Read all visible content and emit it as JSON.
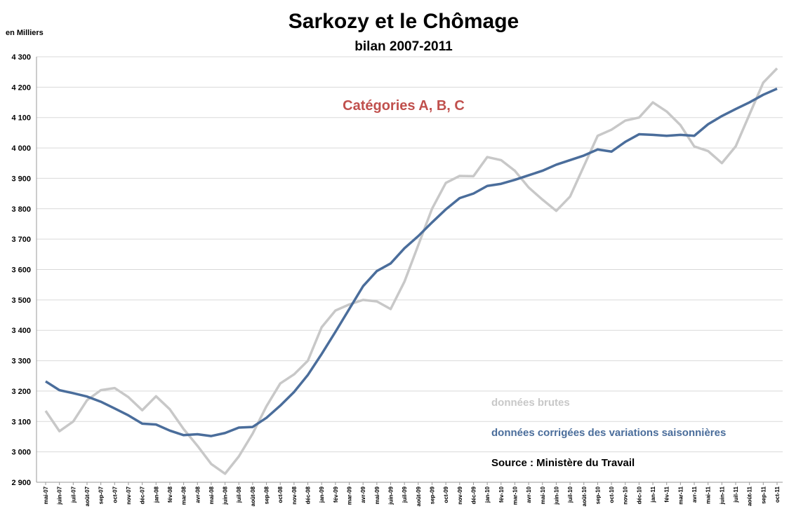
{
  "chart_data": {
    "type": "line",
    "title": "Sarkozy et le Chômage",
    "subtitle": "bilan 2007-2011",
    "y_axis_label": "en Milliers",
    "annotation": "Catégories A, B, C",
    "source": "Source : Ministère du Travail",
    "categories": [
      "mai-07",
      "juin-07",
      "juil-07",
      "août-07",
      "sep-07",
      "oct-07",
      "nov-07",
      "déc-07",
      "jan-08",
      "fév-08",
      "mar-08",
      "avr-08",
      "mai-08",
      "juin-08",
      "juil-08",
      "août-08",
      "sep-08",
      "oct-08",
      "nov-08",
      "déc-08",
      "jan-09",
      "fév-09",
      "mar-09",
      "avr-09",
      "mai-09",
      "juin-09",
      "juil-09",
      "août-09",
      "sep-09",
      "oct-09",
      "nov-09",
      "déc-09",
      "jan-10",
      "fév-10",
      "mar-10",
      "avr-10",
      "mai-10",
      "juin-10",
      "juil-10",
      "août-10",
      "sep-10",
      "oct-10",
      "nov-10",
      "déc-10",
      "jan-11",
      "fév-11",
      "mar-11",
      "avr-11",
      "mai-11",
      "juin-11",
      "juil-11",
      "août-11",
      "sep-11",
      "oct-11"
    ],
    "series": [
      {
        "name": "données brutes",
        "color": "#c8c8c8",
        "values": [
          3135,
          3068,
          3100,
          3170,
          3203,
          3210,
          3180,
          3137,
          3183,
          3140,
          3075,
          3020,
          2960,
          2928,
          2985,
          3060,
          3150,
          3225,
          3255,
          3300,
          3410,
          3465,
          3485,
          3500,
          3495,
          3470,
          3560,
          3680,
          3800,
          3885,
          3908,
          3907,
          3970,
          3960,
          3925,
          3870,
          3830,
          3793,
          3840,
          3940,
          4040,
          4060,
          4090,
          4100,
          4150,
          4120,
          4075,
          4005,
          3990,
          3950,
          4005,
          4110,
          4215,
          4262
        ]
      },
      {
        "name": "données corrigées des variations saisonnières",
        "color": "#4a6d9b",
        "values": [
          3232,
          3203,
          3193,
          3182,
          3165,
          3143,
          3120,
          3093,
          3090,
          3070,
          3055,
          3058,
          3052,
          3062,
          3080,
          3082,
          3112,
          3152,
          3197,
          3253,
          3322,
          3395,
          3470,
          3545,
          3595,
          3620,
          3670,
          3710,
          3755,
          3798,
          3835,
          3850,
          3875,
          3882,
          3895,
          3910,
          3925,
          3945,
          3960,
          3975,
          3995,
          3988,
          4020,
          4045,
          4043,
          4040,
          4043,
          4040,
          4078,
          4105,
          4128,
          4150,
          4175,
          4195
        ]
      }
    ],
    "ylim": [
      2900,
      4300
    ],
    "yticks": [
      {
        "value": 2900,
        "label": "2 900"
      },
      {
        "value": 3000,
        "label": "3 000"
      },
      {
        "value": 3100,
        "label": "3 100"
      },
      {
        "value": 3200,
        "label": "3 200"
      },
      {
        "value": 3300,
        "label": "3 300"
      },
      {
        "value": 3400,
        "label": "3 400"
      },
      {
        "value": 3500,
        "label": "3 500"
      },
      {
        "value": 3600,
        "label": "3 600"
      },
      {
        "value": 3700,
        "label": "3 700"
      },
      {
        "value": 3800,
        "label": "3 800"
      },
      {
        "value": 3900,
        "label": "3 900"
      },
      {
        "value": 4000,
        "label": "4 000"
      },
      {
        "value": 4100,
        "label": "4 100"
      },
      {
        "value": 4200,
        "label": "4 200"
      },
      {
        "value": 4300,
        "label": "4 300"
      }
    ],
    "grid": true,
    "annotation_color": "#c0504d"
  }
}
